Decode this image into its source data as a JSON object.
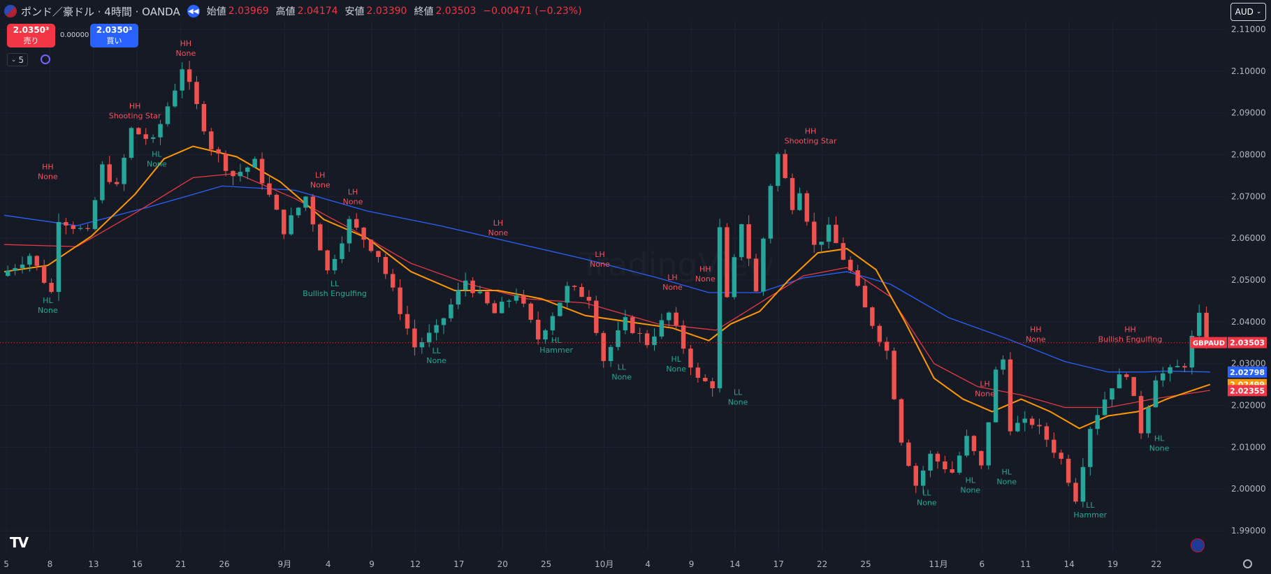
{
  "header": {
    "title": "ポンド／豪ドル · 4時間 · OANDA",
    "open_label": "始値",
    "open": "2.03969",
    "high_label": "高値",
    "high": "2.04174",
    "low_label": "安値",
    "low": "2.03390",
    "close_label": "終値",
    "close": "2.03503",
    "change": "−0.00471 (−0.23%)"
  },
  "trade": {
    "sell_price": "2.0350³",
    "sell_label": "売り",
    "spread": "0.00000",
    "buy_price": "2.0350³",
    "buy_label": "買い"
  },
  "indicator_count": "5",
  "currency": "AUD",
  "colors": {
    "up": "#26a69a",
    "down": "#ef5350",
    "ma_fast": "#ff9800",
    "ma_mid": "#e53945",
    "ma_slow": "#2962ff",
    "background": "#161a25"
  },
  "chart_data": {
    "type": "candlestick",
    "symbol": "GBPAUD",
    "ylim": [
      1.985,
      2.112
    ],
    "y_ticks": [
      "2.11000",
      "2.10000",
      "2.09000",
      "2.08000",
      "2.07000",
      "2.06000",
      "2.05000",
      "2.04000",
      "2.03000",
      "2.02000",
      "2.01000",
      "2.00000",
      "1.99000"
    ],
    "x_ticks": [
      {
        "label": "5",
        "t": 0.3
      },
      {
        "label": "8",
        "t": 6.3
      },
      {
        "label": "13",
        "t": 12.3
      },
      {
        "label": "16",
        "t": 18.3
      },
      {
        "label": "21",
        "t": 24.3
      },
      {
        "label": "26",
        "t": 30.3
      },
      {
        "label": "9月",
        "t": 38.6
      },
      {
        "label": "4",
        "t": 44.6
      },
      {
        "label": "9",
        "t": 50.6
      },
      {
        "label": "12",
        "t": 56.6
      },
      {
        "label": "17",
        "t": 62.6
      },
      {
        "label": "20",
        "t": 68.6
      },
      {
        "label": "25",
        "t": 74.6
      },
      {
        "label": "10月",
        "t": 82.6
      },
      {
        "label": "4",
        "t": 88.6
      },
      {
        "label": "9",
        "t": 94.6
      },
      {
        "label": "14",
        "t": 100.6
      },
      {
        "label": "17",
        "t": 106.6
      },
      {
        "label": "22",
        "t": 112.6
      },
      {
        "label": "25",
        "t": 118.6
      },
      {
        "label": "11月",
        "t": 128.6
      },
      {
        "label": "6",
        "t": 134.6
      },
      {
        "label": "11",
        "t": 140.6
      },
      {
        "label": "14",
        "t": 146.6
      },
      {
        "label": "19",
        "t": 152.6
      },
      {
        "label": "22",
        "t": 158.6
      }
    ],
    "t_range": [
      0,
      174
    ],
    "key_points": [
      [
        0,
        2.051
      ],
      [
        4,
        2.056
      ],
      [
        7,
        2.047
      ],
      [
        8,
        2.065
      ],
      [
        12,
        2.061
      ],
      [
        14,
        2.077
      ],
      [
        16,
        2.072
      ],
      [
        18,
        2.086
      ],
      [
        21,
        2.083
      ],
      [
        24,
        2.096
      ],
      [
        25,
        2.101
      ],
      [
        29,
        2.082
      ],
      [
        32,
        2.075
      ],
      [
        35,
        2.078
      ],
      [
        39,
        2.062
      ],
      [
        42,
        2.07
      ],
      [
        45,
        2.052
      ],
      [
        48,
        2.064
      ],
      [
        52,
        2.056
      ],
      [
        57,
        2.034
      ],
      [
        60,
        2.038
      ],
      [
        64,
        2.05
      ],
      [
        68,
        2.042
      ],
      [
        71,
        2.047
      ],
      [
        74,
        2.036
      ],
      [
        78,
        2.048
      ],
      [
        81,
        2.046
      ],
      [
        83,
        2.031
      ],
      [
        86,
        2.04
      ],
      [
        89,
        2.035
      ],
      [
        92,
        2.042
      ],
      [
        96,
        2.026
      ],
      [
        98,
        2.025
      ],
      [
        99,
        2.062
      ],
      [
        100,
        2.045
      ],
      [
        102,
        2.064
      ],
      [
        104,
        2.047
      ],
      [
        106,
        2.073
      ],
      [
        107,
        2.08
      ],
      [
        109,
        2.068
      ],
      [
        110,
        2.072
      ],
      [
        112,
        2.058
      ],
      [
        114,
        2.062
      ],
      [
        117,
        2.052
      ],
      [
        119,
        2.043
      ],
      [
        122,
        2.033
      ],
      [
        124,
        2.012
      ],
      [
        126,
        2.001
      ],
      [
        128,
        2.008
      ],
      [
        131,
        2.004
      ],
      [
        133,
        2.012
      ],
      [
        135,
        2.005
      ],
      [
        137,
        2.028
      ],
      [
        138,
        2.031
      ],
      [
        139,
        2.015
      ],
      [
        142,
        2.016
      ],
      [
        144,
        2.012
      ],
      [
        146,
        2.007
      ],
      [
        148,
        1.998
      ],
      [
        150,
        2.015
      ],
      [
        153,
        2.025
      ],
      [
        155,
        2.028
      ],
      [
        157,
        2.014
      ],
      [
        159,
        2.027
      ],
      [
        161,
        2.028
      ],
      [
        163,
        2.03
      ],
      [
        164,
        2.036
      ],
      [
        165,
        2.041
      ],
      [
        165.6,
        2.035
      ]
    ],
    "candle_count": 166,
    "moving_averages": [
      {
        "color": "#2962ff",
        "points": [
          [
            0,
            2.0655
          ],
          [
            10,
            2.063
          ],
          [
            20,
            2.0675
          ],
          [
            30,
            2.0725
          ],
          [
            40,
            2.0715
          ],
          [
            50,
            2.0665
          ],
          [
            60,
            2.063
          ],
          [
            70,
            2.059
          ],
          [
            80,
            2.055
          ],
          [
            90,
            2.0505
          ],
          [
            97,
            2.047
          ],
          [
            104,
            2.047
          ],
          [
            110,
            2.0505
          ],
          [
            116,
            2.052
          ],
          [
            122,
            2.049
          ],
          [
            130,
            2.041
          ],
          [
            138,
            2.036
          ],
          [
            146,
            2.0305
          ],
          [
            152,
            2.028
          ],
          [
            157,
            2.028
          ],
          [
            160,
            2.0282
          ],
          [
            166,
            2.028
          ]
        ]
      },
      {
        "color": "#e53945",
        "points": [
          [
            0,
            2.0585
          ],
          [
            10,
            2.058
          ],
          [
            18,
            2.066
          ],
          [
            26,
            2.0745
          ],
          [
            32,
            2.0755
          ],
          [
            40,
            2.0695
          ],
          [
            48,
            2.062
          ],
          [
            56,
            2.054
          ],
          [
            64,
            2.049
          ],
          [
            72,
            2.0455
          ],
          [
            80,
            2.0445
          ],
          [
            90,
            2.0395
          ],
          [
            98,
            2.038
          ],
          [
            104,
            2.0445
          ],
          [
            110,
            2.051
          ],
          [
            116,
            2.053
          ],
          [
            122,
            2.046
          ],
          [
            128,
            2.03
          ],
          [
            134,
            2.0245
          ],
          [
            140,
            2.0225
          ],
          [
            146,
            2.0195
          ],
          [
            152,
            2.0195
          ],
          [
            158,
            2.0215
          ],
          [
            166,
            2.0236
          ]
        ]
      },
      {
        "color": "#ff9800",
        "points": [
          [
            0,
            2.052
          ],
          [
            6,
            2.0535
          ],
          [
            12,
            2.0605
          ],
          [
            18,
            2.0705
          ],
          [
            22,
            2.079
          ],
          [
            26,
            2.082
          ],
          [
            32,
            2.0795
          ],
          [
            38,
            2.0735
          ],
          [
            44,
            2.0645
          ],
          [
            50,
            2.06
          ],
          [
            56,
            2.052
          ],
          [
            62,
            2.0475
          ],
          [
            68,
            2.0475
          ],
          [
            74,
            2.0455
          ],
          [
            80,
            2.0415
          ],
          [
            86,
            2.04
          ],
          [
            92,
            2.0385
          ],
          [
            97,
            2.0355
          ],
          [
            100,
            2.0395
          ],
          [
            104,
            2.0425
          ],
          [
            108,
            2.05
          ],
          [
            112,
            2.0565
          ],
          [
            116,
            2.0575
          ],
          [
            120,
            2.0525
          ],
          [
            124,
            2.04
          ],
          [
            128,
            2.0265
          ],
          [
            132,
            2.0215
          ],
          [
            136,
            2.0185
          ],
          [
            140,
            2.0215
          ],
          [
            144,
            2.0185
          ],
          [
            148,
            2.0145
          ],
          [
            152,
            2.0175
          ],
          [
            156,
            2.0185
          ],
          [
            160,
            2.0215
          ],
          [
            166,
            2.025
          ]
        ]
      }
    ],
    "annotations": [
      {
        "t": 6,
        "price": 2.0715,
        "pos": "above",
        "type": "high",
        "lines": [
          "HH",
          "None"
        ]
      },
      {
        "t": 6,
        "price": 2.0475,
        "pos": "below",
        "type": "low",
        "lines": [
          "HL",
          "None"
        ]
      },
      {
        "t": 18,
        "price": 2.086,
        "pos": "above",
        "type": "high",
        "lines": [
          "HH",
          "Shooting Star"
        ]
      },
      {
        "t": 21,
        "price": 2.0745,
        "pos": "above",
        "type": "low",
        "lines": [
          "HL",
          "None"
        ]
      },
      {
        "t": 25,
        "price": 2.101,
        "pos": "above",
        "type": "high",
        "lines": [
          "HH",
          "None"
        ]
      },
      {
        "t": 43.5,
        "price": 2.0695,
        "pos": "above",
        "type": "high",
        "lines": [
          "LH",
          "None"
        ]
      },
      {
        "t": 48,
        "price": 2.0655,
        "pos": "above",
        "type": "high",
        "lines": [
          "LH",
          "None"
        ]
      },
      {
        "t": 45.5,
        "price": 2.0515,
        "pos": "below",
        "type": "low",
        "lines": [
          "LL",
          "Bullish Engulfing"
        ]
      },
      {
        "t": 59.5,
        "price": 2.0355,
        "pos": "below",
        "type": "low",
        "lines": [
          "LL",
          "None"
        ]
      },
      {
        "t": 68,
        "price": 2.058,
        "pos": "above",
        "type": "high",
        "lines": [
          "LH",
          "None"
        ]
      },
      {
        "t": 76,
        "price": 2.038,
        "pos": "below",
        "type": "low",
        "lines": [
          "HL",
          "Hammer"
        ]
      },
      {
        "t": 82,
        "price": 2.0505,
        "pos": "above",
        "type": "high",
        "lines": [
          "LH",
          "None"
        ]
      },
      {
        "t": 85,
        "price": 2.0315,
        "pos": "below",
        "type": "low",
        "lines": [
          "LL",
          "None"
        ]
      },
      {
        "t": 92,
        "price": 2.045,
        "pos": "above",
        "type": "high",
        "lines": [
          "LH",
          "None"
        ]
      },
      {
        "t": 92.5,
        "price": 2.0335,
        "pos": "below",
        "type": "low",
        "lines": [
          "HL",
          "None"
        ]
      },
      {
        "t": 96.5,
        "price": 2.047,
        "pos": "above",
        "type": "high",
        "lines": [
          "HH",
          "None"
        ]
      },
      {
        "t": 101,
        "price": 2.0255,
        "pos": "below",
        "type": "low",
        "lines": [
          "LL",
          "None"
        ]
      },
      {
        "t": 111,
        "price": 2.08,
        "pos": "above",
        "type": "high",
        "lines": [
          "HH",
          "Shooting Star"
        ]
      },
      {
        "t": 127,
        "price": 2.0015,
        "pos": "below",
        "type": "low",
        "lines": [
          "LL",
          "None"
        ]
      },
      {
        "t": 135,
        "price": 2.0195,
        "pos": "above",
        "type": "high",
        "lines": [
          "LH",
          "None"
        ]
      },
      {
        "t": 133,
        "price": 2.0045,
        "pos": "below",
        "type": "low",
        "lines": [
          "HL",
          "None"
        ]
      },
      {
        "t": 138,
        "price": 2.0065,
        "pos": "below",
        "type": "low",
        "lines": [
          "HL",
          "None"
        ]
      },
      {
        "t": 142,
        "price": 2.0325,
        "pos": "above",
        "type": "high",
        "lines": [
          "HH",
          "None"
        ]
      },
      {
        "t": 149.5,
        "price": 1.9985,
        "pos": "below",
        "type": "low",
        "lines": [
          "LL",
          "Hammer"
        ]
      },
      {
        "t": 155,
        "price": 2.0325,
        "pos": "above",
        "type": "high",
        "lines": [
          "HH",
          "Bullish Engulfing"
        ]
      },
      {
        "t": 159,
        "price": 2.0145,
        "pos": "below",
        "type": "low",
        "lines": [
          "HL",
          "None"
        ]
      }
    ],
    "price_labels": [
      {
        "text": "2.03503",
        "price": 2.03503,
        "color": "#f23645",
        "symbol": "GBPAUD"
      },
      {
        "text": "2.02798",
        "price": 2.02798,
        "color": "#2962ff"
      },
      {
        "text": "2.02499",
        "price": 2.02499,
        "color": "#ff9800"
      },
      {
        "text": "2.02355",
        "price": 2.02355,
        "color": "#f23645"
      }
    ],
    "watermark": "TradingView"
  }
}
